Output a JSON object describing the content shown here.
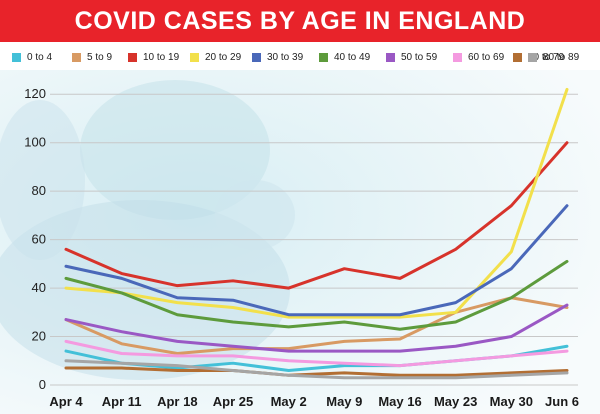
{
  "title": "COVID CASES BY AGE IN ENGLAND",
  "colors": {
    "title_bg": "#e8232a",
    "title_text": "#ffffff"
  },
  "chart_data": {
    "type": "line",
    "title": "COVID CASES BY AGE IN ENGLAND",
    "xlabel": "",
    "ylabel": "",
    "ylim": [
      0,
      130
    ],
    "yticks": [
      "0",
      "20",
      "40",
      "60",
      "80",
      "100",
      "120"
    ],
    "categories": [
      "Apr 4",
      "Apr 11",
      "Apr 18",
      "Apr 25",
      "May 2",
      "May 9",
      "May 16",
      "May 23",
      "May 30",
      "Jun 6"
    ],
    "grid": true,
    "legend": "top",
    "series": [
      {
        "name": "0 to 4",
        "color": "#43c0d8",
        "values": [
          14,
          9,
          7,
          9,
          6,
          8,
          8,
          10,
          12,
          16
        ]
      },
      {
        "name": "5 to 9",
        "color": "#d89a63",
        "values": [
          27,
          17,
          13,
          15,
          15,
          18,
          19,
          30,
          36,
          32
        ]
      },
      {
        "name": "10 to 19",
        "color": "#d7332b",
        "values": [
          56,
          46,
          41,
          43,
          40,
          48,
          44,
          56,
          74,
          100
        ]
      },
      {
        "name": "20 to 29",
        "color": "#f2e04b",
        "values": [
          40,
          38,
          34,
          32,
          28,
          28,
          28,
          30,
          55,
          122
        ]
      },
      {
        "name": "30 to 39",
        "color": "#4a68b9",
        "values": [
          49,
          44,
          36,
          35,
          29,
          29,
          29,
          34,
          48,
          74
        ]
      },
      {
        "name": "40 to 49",
        "color": "#5d9b3c",
        "values": [
          44,
          38,
          29,
          26,
          24,
          26,
          23,
          26,
          36,
          51
        ]
      },
      {
        "name": "50 to 59",
        "color": "#9a58c4",
        "values": [
          27,
          22,
          18,
          16,
          14,
          14,
          14,
          16,
          20,
          33
        ]
      },
      {
        "name": "60 to 69",
        "color": "#f49ae0",
        "values": [
          18,
          13,
          12,
          12,
          10,
          9,
          8,
          10,
          12,
          14
        ]
      },
      {
        "name": "70 to 79",
        "color": "#b26e33",
        "values": [
          7,
          7,
          6,
          6,
          4,
          5,
          4,
          4,
          5,
          6
        ]
      },
      {
        "name": "80 to 89",
        "color": "#a5a5a5",
        "values": [
          10,
          9,
          8,
          6,
          4,
          3,
          3,
          3,
          4,
          5
        ]
      }
    ]
  }
}
